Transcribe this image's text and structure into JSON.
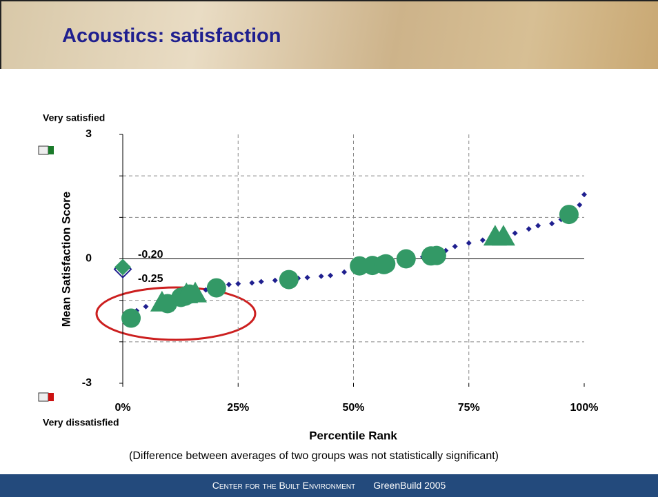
{
  "header": {
    "title": "Acoustics: satisfaction"
  },
  "chart_data": {
    "type": "scatter",
    "y_label": "Mean Satisfaction Score",
    "x_label": "Percentile Rank",
    "y_top_label": "Very satisfied",
    "y_bottom_label": "Very dissatisfied",
    "note": "(Difference between averages of two groups was not statistically significant)",
    "xlim": [
      0,
      100
    ],
    "ylim": [
      -3,
      3
    ],
    "xticks": [
      {
        "value": 0,
        "label": "0%"
      },
      {
        "value": 25,
        "label": "25%"
      },
      {
        "value": 50,
        "label": "50%"
      },
      {
        "value": 75,
        "label": "75%"
      },
      {
        "value": 100,
        "label": "100%"
      }
    ],
    "yticks": [
      -3,
      0,
      3
    ],
    "y_minor_grid": [
      -2,
      -1,
      1,
      2
    ],
    "grid": true,
    "series": [
      {
        "marker": "diamond",
        "color": "#1f1f8f",
        "x": [
          1,
          3,
          5,
          8,
          10,
          13,
          15,
          18,
          20,
          23,
          25,
          28,
          30,
          33,
          36,
          38,
          40,
          43,
          45,
          48,
          50,
          52,
          55,
          58,
          60,
          62,
          65,
          68,
          70,
          72,
          75,
          78,
          80,
          83,
          85,
          88,
          90,
          93,
          95,
          97,
          99,
          100
        ],
        "values": [
          -1.45,
          -1.25,
          -1.15,
          -1.05,
          -0.98,
          -0.9,
          -0.82,
          -0.75,
          -0.68,
          -0.62,
          -0.6,
          -0.58,
          -0.55,
          -0.52,
          -0.5,
          -0.47,
          -0.45,
          -0.42,
          -0.4,
          -0.32,
          -0.2,
          -0.17,
          -0.13,
          -0.08,
          -0.05,
          -0.02,
          0.05,
          0.12,
          0.2,
          0.3,
          0.38,
          0.45,
          0.5,
          0.55,
          0.62,
          0.72,
          0.8,
          0.85,
          0.95,
          1.1,
          1.3,
          1.55
        ]
      },
      {
        "marker": "circle",
        "color": "#339966",
        "x": [
          1.8,
          9.7,
          12.6,
          13.5,
          14.5,
          20.3,
          36,
          51.3,
          54.1,
          56.6,
          57,
          61.4,
          66.8,
          68,
          96.7
        ],
        "values": [
          -1.43,
          -1.08,
          -0.93,
          -0.9,
          -0.85,
          -0.7,
          -0.5,
          -0.17,
          -0.16,
          -0.14,
          -0.12,
          0,
          0.07,
          0.08,
          1.07
        ]
      },
      {
        "marker": "triangle",
        "color": "#339966",
        "x": [
          8.5,
          13.8,
          15.7,
          80.7,
          82.5
        ],
        "values": [
          -1.07,
          -0.87,
          -0.85,
          0.52,
          0.52
        ]
      },
      {
        "marker": "big-diamond",
        "color": "#339966",
        "x": [
          0
        ],
        "values": [
          -0.2
        ],
        "value_labels": [
          "-0.20"
        ]
      },
      {
        "marker": "hollow-diamond",
        "color": "#1f1f8f",
        "x": [
          0
        ],
        "values": [
          -0.25
        ],
        "value_labels": [
          "-0.25"
        ]
      }
    ]
  },
  "footer": {
    "org": "Center for the Built Environment",
    "event": "GreenBuild 2005"
  }
}
